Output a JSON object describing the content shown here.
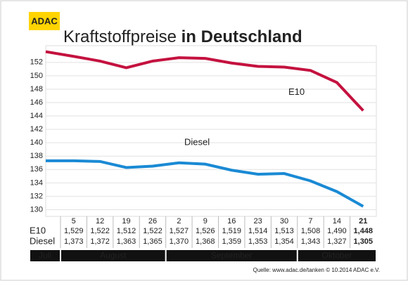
{
  "logo": "ADAC",
  "chart_data": {
    "type": "line",
    "title_parts": [
      "Kraftstoffpreise",
      "in Deutschland"
    ],
    "categories": [
      null,
      "5",
      "12",
      "19",
      "26",
      "2",
      "9",
      "16",
      "23",
      "30",
      "7",
      "14",
      "21"
    ],
    "months": [
      "Juli",
      "August",
      "September",
      "Oktober"
    ],
    "series": [
      {
        "name": "E10",
        "color": "#c4123f",
        "values": [
          153.6,
          152.9,
          152.2,
          151.2,
          152.2,
          152.7,
          152.6,
          151.9,
          151.4,
          151.3,
          150.8,
          149.0,
          144.8
        ],
        "value_labels": [
          null,
          "1,529",
          "1,522",
          "1,512",
          "1,522",
          "1,527",
          "1,526",
          "1,519",
          "1,514",
          "1,513",
          "1,508",
          "1,490",
          "1,448"
        ]
      },
      {
        "name": "Diesel",
        "color": "#1a8ad4",
        "values": [
          137.3,
          137.3,
          137.2,
          136.3,
          136.5,
          137.0,
          136.8,
          135.9,
          135.3,
          135.4,
          134.3,
          132.7,
          130.5
        ],
        "value_labels": [
          null,
          "1,373",
          "1,372",
          "1,363",
          "1,365",
          "1,370",
          "1,368",
          "1,359",
          "1,353",
          "1,354",
          "1,343",
          "1,327",
          "1,305"
        ]
      }
    ],
    "ylim": [
      129,
      154.5
    ],
    "yticks": [
      130,
      132,
      134,
      136,
      138,
      140,
      142,
      144,
      146,
      148,
      150,
      152
    ],
    "grid": true
  },
  "source": "Quelle: www.adac.de/tanken  © 10.2014  ADAC e.V."
}
